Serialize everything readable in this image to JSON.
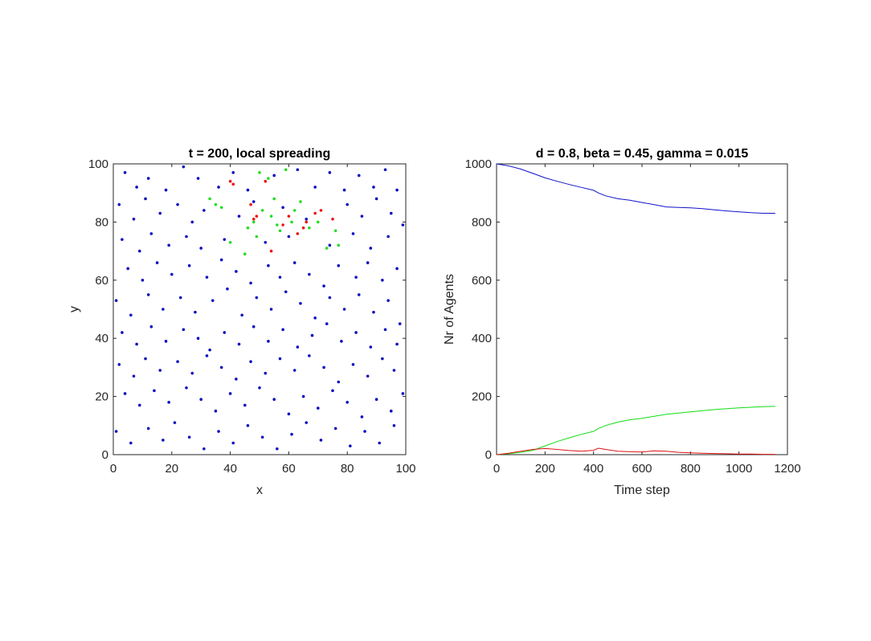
{
  "chart_data": [
    {
      "type": "scatter",
      "title": "t = 200, local spreading",
      "xlabel": "x",
      "ylabel": "y",
      "xlim": [
        0,
        100
      ],
      "ylim": [
        0,
        100
      ],
      "xticks": [
        0,
        20,
        40,
        60,
        80,
        100
      ],
      "yticks": [
        0,
        20,
        40,
        60,
        80,
        100
      ],
      "xtick_labels": [
        "0",
        "20",
        "40",
        "60",
        "80",
        "100"
      ],
      "ytick_labels": [
        "0",
        "20",
        "40",
        "60",
        "80",
        "100"
      ],
      "grid": false,
      "series": [
        {
          "color": "#0b0bbf",
          "points": [
            [
              4,
              97
            ],
            [
              8,
              92
            ],
            [
              12,
              95
            ],
            [
              18,
              91
            ],
            [
              24,
              99
            ],
            [
              29,
              95
            ],
            [
              36,
              92
            ],
            [
              41,
              97
            ],
            [
              46,
              91
            ],
            [
              55,
              96
            ],
            [
              63,
              98
            ],
            [
              69,
              92
            ],
            [
              74,
              97
            ],
            [
              79,
              91
            ],
            [
              84,
              96
            ],
            [
              89,
              92
            ],
            [
              93,
              98
            ],
            [
              97,
              91
            ],
            [
              2,
              86
            ],
            [
              7,
              81
            ],
            [
              11,
              88
            ],
            [
              16,
              83
            ],
            [
              22,
              86
            ],
            [
              27,
              80
            ],
            [
              31,
              84
            ],
            [
              43,
              82
            ],
            [
              48,
              87
            ],
            [
              58,
              85
            ],
            [
              66,
              81
            ],
            [
              80,
              86
            ],
            [
              85,
              82
            ],
            [
              90,
              88
            ],
            [
              95,
              83
            ],
            [
              99,
              79
            ],
            [
              3,
              74
            ],
            [
              9,
              70
            ],
            [
              13,
              76
            ],
            [
              19,
              72
            ],
            [
              25,
              75
            ],
            [
              30,
              71
            ],
            [
              38,
              74
            ],
            [
              52,
              73
            ],
            [
              60,
              75
            ],
            [
              74,
              72
            ],
            [
              82,
              76
            ],
            [
              88,
              71
            ],
            [
              94,
              75
            ],
            [
              5,
              64
            ],
            [
              10,
              60
            ],
            [
              15,
              66
            ],
            [
              20,
              62
            ],
            [
              26,
              65
            ],
            [
              32,
              61
            ],
            [
              37,
              67
            ],
            [
              42,
              63
            ],
            [
              47,
              59
            ],
            [
              53,
              65
            ],
            [
              57,
              61
            ],
            [
              62,
              66
            ],
            [
              67,
              62
            ],
            [
              72,
              58
            ],
            [
              77,
              65
            ],
            [
              83,
              61
            ],
            [
              87,
              66
            ],
            [
              92,
              60
            ],
            [
              97,
              64
            ],
            [
              1,
              53
            ],
            [
              6,
              48
            ],
            [
              12,
              55
            ],
            [
              17,
              50
            ],
            [
              23,
              54
            ],
            [
              28,
              49
            ],
            [
              34,
              53
            ],
            [
              39,
              57
            ],
            [
              44,
              48
            ],
            [
              49,
              54
            ],
            [
              54,
              50
            ],
            [
              59,
              56
            ],
            [
              64,
              52
            ],
            [
              69,
              47
            ],
            [
              74,
              54
            ],
            [
              79,
              50
            ],
            [
              84,
              55
            ],
            [
              89,
              49
            ],
            [
              94,
              53
            ],
            [
              98,
              45
            ],
            [
              3,
              42
            ],
            [
              8,
              38
            ],
            [
              13,
              44
            ],
            [
              18,
              39
            ],
            [
              24,
              43
            ],
            [
              29,
              40
            ],
            [
              33,
              36
            ],
            [
              38,
              42
            ],
            [
              43,
              38
            ],
            [
              48,
              44
            ],
            [
              53,
              39
            ],
            [
              58,
              43
            ],
            [
              63,
              37
            ],
            [
              68,
              41
            ],
            [
              73,
              45
            ],
            [
              78,
              39
            ],
            [
              83,
              42
            ],
            [
              88,
              37
            ],
            [
              93,
              43
            ],
            [
              97,
              38
            ],
            [
              2,
              31
            ],
            [
              7,
              27
            ],
            [
              11,
              33
            ],
            [
              16,
              29
            ],
            [
              22,
              32
            ],
            [
              27,
              28
            ],
            [
              32,
              34
            ],
            [
              37,
              30
            ],
            [
              42,
              26
            ],
            [
              47,
              32
            ],
            [
              52,
              28
            ],
            [
              57,
              33
            ],
            [
              62,
              29
            ],
            [
              67,
              34
            ],
            [
              72,
              30
            ],
            [
              77,
              25
            ],
            [
              82,
              31
            ],
            [
              87,
              27
            ],
            [
              92,
              33
            ],
            [
              96,
              29
            ],
            [
              4,
              21
            ],
            [
              9,
              17
            ],
            [
              14,
              22
            ],
            [
              19,
              18
            ],
            [
              25,
              23
            ],
            [
              30,
              19
            ],
            [
              35,
              15
            ],
            [
              40,
              21
            ],
            [
              45,
              17
            ],
            [
              50,
              23
            ],
            [
              55,
              19
            ],
            [
              60,
              14
            ],
            [
              65,
              20
            ],
            [
              70,
              16
            ],
            [
              75,
              22
            ],
            [
              80,
              18
            ],
            [
              85,
              13
            ],
            [
              90,
              19
            ],
            [
              95,
              15
            ],
            [
              99,
              21
            ],
            [
              1,
              8
            ],
            [
              6,
              4
            ],
            [
              12,
              9
            ],
            [
              17,
              5
            ],
            [
              21,
              11
            ],
            [
              26,
              6
            ],
            [
              31,
              2
            ],
            [
              36,
              8
            ],
            [
              41,
              4
            ],
            [
              46,
              10
            ],
            [
              51,
              6
            ],
            [
              56,
              2
            ],
            [
              61,
              7
            ],
            [
              66,
              11
            ],
            [
              71,
              5
            ],
            [
              76,
              9
            ],
            [
              81,
              3
            ],
            [
              86,
              8
            ],
            [
              91,
              4
            ],
            [
              96,
              10
            ]
          ]
        },
        {
          "color": "#ee1111",
          "points": [
            [
              40,
              94
            ],
            [
              41,
              93
            ],
            [
              48,
              81
            ],
            [
              49,
              82
            ],
            [
              52,
              94
            ],
            [
              58,
              79
            ],
            [
              60,
              82
            ],
            [
              63,
              76
            ],
            [
              65,
              78
            ],
            [
              69,
              83
            ],
            [
              71,
              84
            ],
            [
              75,
              81
            ],
            [
              54,
              70
            ],
            [
              47,
              86
            ],
            [
              66,
              80
            ]
          ]
        },
        {
          "color": "#22dd22",
          "points": [
            [
              33,
              88
            ],
            [
              35,
              86
            ],
            [
              37,
              85
            ],
            [
              50,
              97
            ],
            [
              53,
              95
            ],
            [
              59,
              98
            ],
            [
              48,
              80
            ],
            [
              51,
              84
            ],
            [
              54,
              82
            ],
            [
              56,
              79
            ],
            [
              61,
              80
            ],
            [
              57,
              77
            ],
            [
              67,
              78
            ],
            [
              70,
              80
            ],
            [
              76,
              77
            ],
            [
              73,
              71
            ],
            [
              77,
              72
            ],
            [
              49,
              75
            ],
            [
              45,
              69
            ],
            [
              62,
              84
            ],
            [
              55,
              88
            ],
            [
              46,
              78
            ],
            [
              64,
              87
            ],
            [
              40,
              73
            ]
          ]
        }
      ]
    },
    {
      "type": "line",
      "title": "d = 0.8, beta = 0.45, gamma = 0.015",
      "xlabel": "Time step",
      "ylabel": "Nr of Agents",
      "xlim": [
        0,
        1200
      ],
      "ylim": [
        0,
        1000
      ],
      "xticks": [
        0,
        200,
        400,
        600,
        800,
        1000,
        1200
      ],
      "yticks": [
        0,
        200,
        400,
        600,
        800,
        1000
      ],
      "xtick_labels": [
        "0",
        "200",
        "400",
        "600",
        "800",
        "1000",
        "1200"
      ],
      "ytick_labels": [
        "0",
        "200",
        "400",
        "600",
        "800",
        "1000"
      ],
      "grid": false,
      "x": [
        0,
        50,
        100,
        150,
        200,
        250,
        300,
        350,
        400,
        420,
        450,
        500,
        550,
        600,
        650,
        700,
        750,
        800,
        850,
        900,
        950,
        1000,
        1050,
        1100,
        1150
      ],
      "series": [
        {
          "color": "#1111cc",
          "values": [
            1000,
            993,
            982,
            967,
            952,
            940,
            929,
            919,
            909,
            900,
            890,
            880,
            875,
            867,
            860,
            852,
            850,
            849,
            846,
            842,
            838,
            835,
            832,
            830,
            830
          ]
        },
        {
          "color": "#11dd11",
          "values": [
            0,
            3,
            8,
            15,
            30,
            45,
            58,
            70,
            80,
            90,
            100,
            112,
            120,
            125,
            132,
            139,
            143,
            147,
            151,
            155,
            158,
            161,
            163,
            165,
            166
          ]
        },
        {
          "color": "#dd1111",
          "values": [
            0,
            5,
            12,
            18,
            21,
            18,
            14,
            12,
            15,
            22,
            18,
            12,
            10,
            9,
            13,
            12,
            8,
            6,
            5,
            4,
            3,
            2,
            2,
            1,
            1
          ]
        }
      ]
    }
  ]
}
